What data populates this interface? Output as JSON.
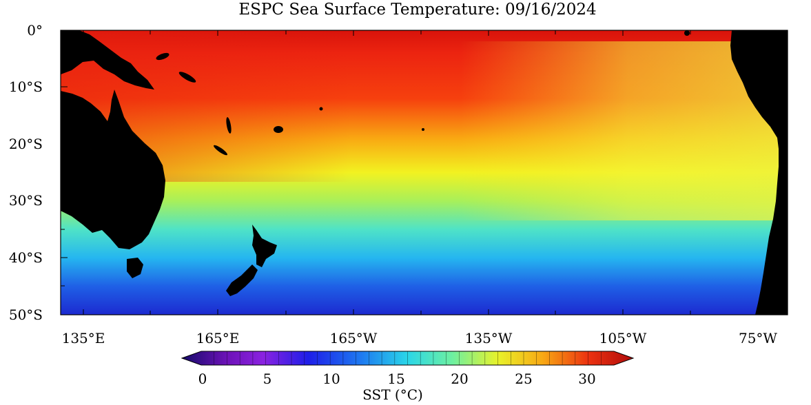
{
  "title": "ESPC Sea Surface Temperature: 09/16/2024",
  "map": {
    "lat_labels": [
      "0°",
      "10°S",
      "20°S",
      "30°S",
      "40°S",
      "50°S"
    ],
    "lon_labels": [
      "135°E",
      "165°E",
      "165°W",
      "135°W",
      "105°W",
      "75°W"
    ],
    "colors": {
      "land": "#000000",
      "warm": "#e8210f",
      "cold": "#1c2cd6"
    }
  },
  "colorbar": {
    "tick_labels": [
      "0",
      "5",
      "10",
      "15",
      "20",
      "25",
      "30"
    ],
    "label": "SST (°C)",
    "range": [
      0,
      32
    ]
  }
}
